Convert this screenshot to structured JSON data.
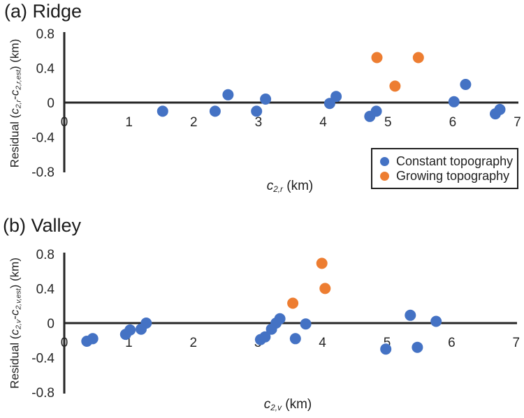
{
  "figure": {
    "colors": {
      "constant_topography": "#4472C4",
      "growing_topography": "#ED7D31",
      "axis": "#262626",
      "text": "#1f1f1f"
    },
    "legend": {
      "items": [
        {
          "label": "Constant topography",
          "color": "#4472C4"
        },
        {
          "label": "Growing topography",
          "color": "#ED7D31"
        }
      ]
    }
  },
  "chart_data": [
    {
      "type": "scatter",
      "panel": "a",
      "title": "(a) Ridge",
      "xlabel": "c_{2,r} (km)",
      "ylabel": "Residual (c_{2,r}-c_{2,r,est}) (km)",
      "xlabel_parts": [
        {
          "text": "c",
          "italic": true
        },
        {
          "text": "2,r",
          "sub": true
        },
        {
          "text": " (km)"
        }
      ],
      "ylabel_parts": [
        {
          "text": "Residual ("
        },
        {
          "text": "c",
          "italic": true
        },
        {
          "text": "2,r",
          "sub": true
        },
        {
          "text": "-"
        },
        {
          "text": "c",
          "italic": true
        },
        {
          "text": "2,r,est",
          "sub": true
        },
        {
          "text": ") (km)"
        }
      ],
      "xlim": [
        0,
        7
      ],
      "ylim": [
        -0.8,
        0.8
      ],
      "x_ticks": [
        0,
        1,
        2,
        3,
        4,
        5,
        6,
        7
      ],
      "y_ticks": [
        0.8,
        0.4,
        0,
        -0.4,
        -0.8
      ],
      "grid": false,
      "legend_visible": true,
      "legend_position": "lower right inside",
      "series": [
        {
          "name": "Constant topography",
          "color": "#4472C4",
          "points": [
            [
              1.52,
              -0.1
            ],
            [
              2.33,
              -0.1
            ],
            [
              2.53,
              0.09
            ],
            [
              2.97,
              -0.1
            ],
            [
              3.11,
              0.04
            ],
            [
              4.1,
              -0.01
            ],
            [
              4.2,
              0.07
            ],
            [
              4.72,
              -0.16
            ],
            [
              4.82,
              -0.1
            ],
            [
              6.02,
              0.01
            ],
            [
              6.2,
              0.21
            ],
            [
              6.66,
              -0.13
            ],
            [
              6.73,
              -0.08
            ]
          ]
        },
        {
          "name": "Growing topography",
          "color": "#ED7D31",
          "points": [
            [
              4.83,
              0.52
            ],
            [
              5.11,
              0.19
            ],
            [
              5.47,
              0.52
            ]
          ]
        }
      ]
    },
    {
      "type": "scatter",
      "panel": "b",
      "title": "(b) Valley",
      "xlabel": "c_{2,v} (km)",
      "ylabel": "Residual (c_{2,v}-c_{2,v,est}) (km)",
      "xlabel_parts": [
        {
          "text": "c",
          "italic": true
        },
        {
          "text": "2,v",
          "sub": true
        },
        {
          "text": " (km)"
        }
      ],
      "ylabel_parts": [
        {
          "text": "Residual ("
        },
        {
          "text": "c",
          "italic": true
        },
        {
          "text": "2,v",
          "sub": true
        },
        {
          "text": "-"
        },
        {
          "text": "c",
          "italic": true
        },
        {
          "text": "2,v,est",
          "sub": true
        },
        {
          "text": ") (km)"
        }
      ],
      "xlim": [
        0,
        7
      ],
      "ylim": [
        -0.8,
        0.8
      ],
      "x_ticks": [
        0,
        1,
        2,
        3,
        4,
        5,
        6,
        7
      ],
      "y_ticks": [
        0.8,
        0.4,
        0,
        -0.4,
        -0.8
      ],
      "grid": false,
      "legend_visible": false,
      "series": [
        {
          "name": "Constant topography",
          "color": "#4472C4",
          "points": [
            [
              0.35,
              -0.21
            ],
            [
              0.44,
              -0.18
            ],
            [
              0.95,
              -0.13
            ],
            [
              1.02,
              -0.08
            ],
            [
              1.19,
              -0.07
            ],
            [
              1.27,
              0.0
            ],
            [
              3.04,
              -0.19
            ],
            [
              3.11,
              -0.16
            ],
            [
              3.21,
              -0.07
            ],
            [
              3.28,
              0.0
            ],
            [
              3.34,
              0.05
            ],
            [
              3.58,
              -0.18
            ],
            [
              3.74,
              -0.01
            ],
            [
              4.98,
              -0.3
            ],
            [
              5.36,
              0.09
            ],
            [
              5.47,
              -0.28
            ],
            [
              5.76,
              0.02
            ]
          ]
        },
        {
          "name": "Growing topography",
          "color": "#ED7D31",
          "points": [
            [
              3.54,
              0.23
            ],
            [
              3.99,
              0.69
            ],
            [
              4.04,
              0.4
            ]
          ]
        }
      ]
    }
  ]
}
